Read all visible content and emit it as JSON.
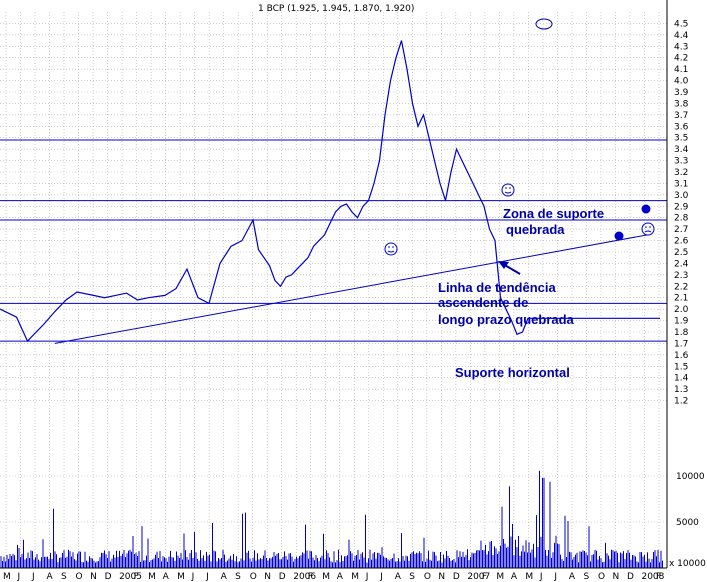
{
  "chart_data": {
    "type": "line",
    "title": "1 BCP (1.925, 1.945, 1.870, 1.920)",
    "xlabel": "",
    "ylabel": "",
    "grid": true,
    "price_axis": {
      "ylim": [
        1.1,
        4.6
      ],
      "ticks": [
        "4.5",
        "4.4",
        "4.3",
        "4.2",
        "4.1",
        "4.0",
        "3.9",
        "3.8",
        "3.7",
        "3.6",
        "3.5",
        "3.4",
        "3.3",
        "3.2",
        "3.1",
        "3.0",
        "2.9",
        "2.8",
        "2.7",
        "2.6",
        "2.5",
        "2.4",
        "2.3",
        "2.2",
        "2.1",
        "2.0",
        "1.9",
        "1.8",
        "1.7",
        "1.6",
        "1.5",
        "1.4",
        "1.3",
        "1.2"
      ]
    },
    "volume_axis": {
      "ylim": [
        0,
        15000
      ],
      "ticks": [
        "10000",
        "5000"
      ],
      "unit_label": "x 10000"
    },
    "x_ticks": [
      "M",
      "J",
      "J",
      "A",
      "S",
      "O",
      "N",
      "D",
      "2005",
      "F",
      "M",
      "A",
      "M",
      "J",
      "J",
      "A",
      "S",
      "O",
      "N",
      "D",
      "2006",
      "F",
      "M",
      "A",
      "M",
      "J",
      "J",
      "A",
      "S",
      "O",
      "N",
      "D",
      "2007",
      "F",
      "M",
      "A",
      "M",
      "J",
      "J",
      "A",
      "S",
      "O",
      "N",
      "D",
      "2008",
      "F"
    ],
    "series": [
      {
        "x": [
          0,
          3,
          5,
          8,
          10,
          12,
          14,
          17,
          19,
          21,
          23,
          25,
          27,
          30,
          32,
          34,
          36,
          38,
          40,
          42,
          44,
          46,
          47,
          48,
          49,
          50,
          51,
          52,
          53,
          54,
          55,
          56,
          57,
          58,
          59,
          60,
          61,
          62,
          63,
          64,
          65,
          66,
          67,
          68,
          69,
          70,
          71,
          72,
          73,
          74,
          75,
          76,
          77,
          78,
          79,
          80,
          81,
          82,
          83,
          84,
          85,
          86,
          87,
          88,
          89,
          90,
          91,
          92,
          93,
          94,
          95,
          96,
          97,
          98,
          99,
          100,
          101,
          102,
          103,
          104,
          105,
          106,
          107,
          108,
          109,
          110,
          111,
          112,
          113,
          114,
          115,
          116,
          117,
          118,
          119,
          120,
          121,
          122,
          123,
          124,
          125,
          126,
          127,
          128,
          129,
          130,
          131,
          132,
          133,
          134,
          135,
          136,
          137,
          138,
          139,
          140
        ],
        "values": [
          2.0,
          1.93,
          1.72,
          1.87,
          1.98,
          2.08,
          2.15,
          2.12,
          2.1,
          2.12,
          2.14,
          2.08,
          2.1,
          2.12,
          2.18,
          2.35,
          2.1,
          2.05,
          2.4,
          2.55,
          2.6,
          2.78,
          2.52,
          2.45,
          2.38,
          2.25,
          2.2,
          2.28,
          2.3,
          2.35,
          2.4,
          2.45,
          2.55,
          2.6,
          2.65,
          2.75,
          2.85,
          2.9,
          2.92,
          2.85,
          2.8,
          2.9,
          2.95,
          3.1,
          3.3,
          3.7,
          4.0,
          4.2,
          4.35,
          4.1,
          3.8,
          3.6,
          3.7,
          3.5,
          3.3,
          3.1,
          2.95,
          3.2,
          3.4,
          3.3,
          3.2,
          3.1,
          3.0,
          2.9,
          2.7,
          2.6,
          2.1,
          2.0,
          1.9,
          1.78,
          1.8,
          1.92,
          1.92,
          1.92,
          1.92,
          1.92,
          1.92,
          1.92,
          1.92,
          1.92,
          1.92,
          1.92,
          1.92,
          1.92,
          1.92,
          1.92,
          1.92,
          1.92,
          1.92,
          1.92,
          1.92,
          1.92,
          1.92,
          1.92,
          1.92,
          1.92,
          1.92,
          1.92,
          1.92,
          1.92,
          1.92,
          1.92,
          1.92,
          1.92,
          1.92,
          1.92,
          1.92,
          1.92,
          1.92,
          1.92,
          1.92,
          1.92,
          1.92,
          1.92,
          1.92,
          1.92
        ]
      }
    ],
    "horizontal_lines": [
      3.48,
      2.95,
      2.78,
      2.05,
      1.72
    ],
    "trendline": {
      "from": [
        14,
        1.7
      ],
      "to": [
        165,
        2.65
      ]
    },
    "annotations": [
      "Zona de suporte quebrada",
      "Linha de tendência ascendente de longo prazo quebrada",
      "Suporte horizontal"
    ]
  }
}
